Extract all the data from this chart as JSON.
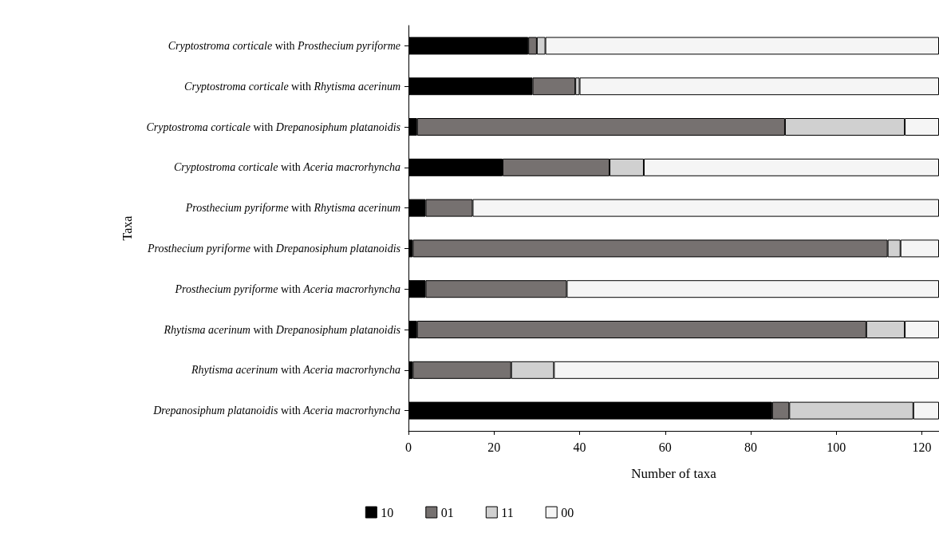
{
  "chart_data": {
    "type": "bar",
    "orientation": "horizontal",
    "stacked": true,
    "categories": [
      "Cryptostroma corticale with Prosthecium pyriforme",
      "Cryptostroma corticale with Rhytisma acerinum",
      "Cryptostroma corticale with Drepanosiphum platanoidis",
      "Cryptostroma corticale with Aceria macrorhyncha",
      "Prosthecium pyriforme with Rhytisma acerinum",
      "Prosthecium pyriforme with Drepanosiphum platanoidis",
      "Prosthecium pyriforme with Aceria macrorhyncha",
      "Rhytisma acerinum with Drepanosiphum platanoidis",
      "Rhytisma acerinum with Aceria macrorhyncha",
      "Drepanosiphum platanoidis with Aceria macrorhyncha"
    ],
    "series": [
      {
        "name": "10",
        "color": "#000000",
        "values": [
          28,
          29,
          2,
          22,
          4,
          1,
          4,
          2,
          1,
          85
        ]
      },
      {
        "name": "01",
        "color": "#767170",
        "values": [
          2,
          10,
          86,
          25,
          11,
          111,
          33,
          105,
          23,
          4
        ]
      },
      {
        "name": "11",
        "color": "#d0d0d0",
        "values": [
          2,
          1,
          28,
          8,
          0,
          3,
          0,
          9,
          10,
          29
        ]
      },
      {
        "name": "00",
        "color": "#f5f5f5",
        "values": [
          92,
          84,
          8,
          69,
          109,
          9,
          87,
          8,
          90,
          6
        ]
      }
    ],
    "xlabel": "Number of taxa",
    "ylabel": "Taxa",
    "xlim": [
      0,
      124
    ],
    "xticks": [
      0,
      20,
      40,
      60,
      80,
      100,
      120
    ],
    "grid": false,
    "legend": "bottom"
  }
}
